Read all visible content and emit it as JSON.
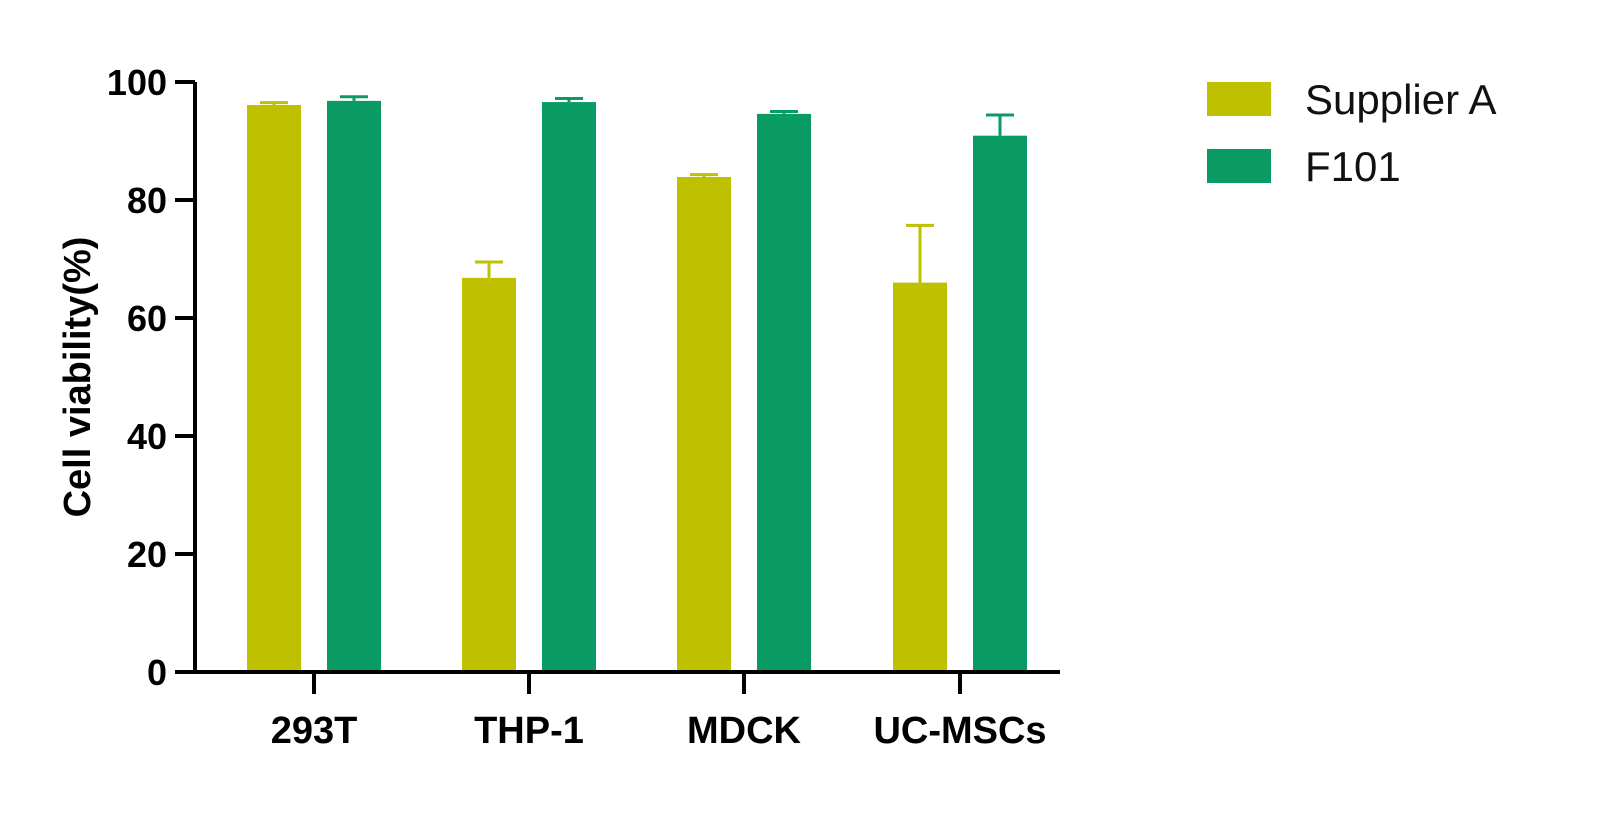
{
  "chart_data": {
    "type": "bar",
    "title": "",
    "ylabel": "Cell viability(%)",
    "xlabel": "",
    "ylim": [
      0,
      100
    ],
    "yticks": [
      0,
      20,
      40,
      60,
      80,
      100
    ],
    "categories": [
      "293T",
      "THP-1",
      "MDCK",
      "UC-MSCs"
    ],
    "series": [
      {
        "name": "Supplier A",
        "color": "#BFC000",
        "values": [
          96.1,
          66.8,
          83.9,
          66.0
        ],
        "errors": [
          0.4,
          2.7,
          0.4,
          9.7
        ]
      },
      {
        "name": "F101",
        "color": "#0A9B64",
        "values": [
          96.8,
          96.6,
          94.6,
          90.9
        ],
        "errors": [
          0.7,
          0.6,
          0.4,
          3.5
        ]
      }
    ],
    "grid": false,
    "legend_position": "top-right"
  }
}
